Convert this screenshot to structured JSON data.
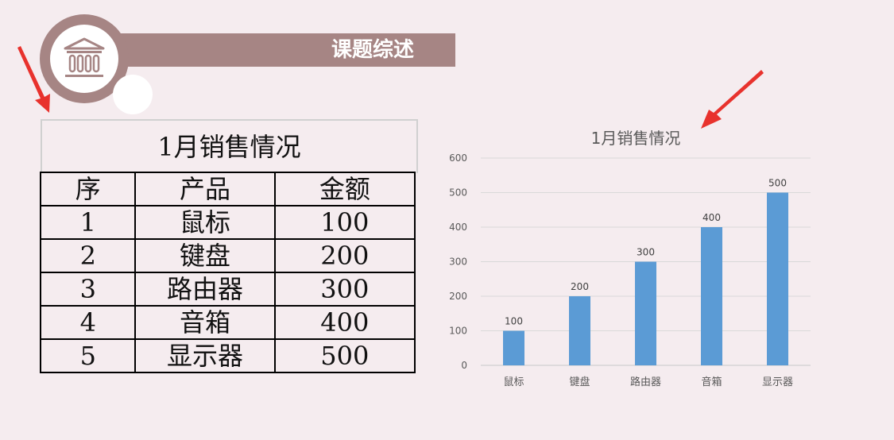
{
  "header": {
    "title": "课题综述",
    "icon": "building-columns-icon",
    "banner_color": "#a68584"
  },
  "table": {
    "title": "1月销售情况",
    "headers": [
      "序",
      "产品",
      "金额"
    ],
    "rows": [
      [
        "1",
        "鼠标",
        "100"
      ],
      [
        "2",
        "键盘",
        "200"
      ],
      [
        "3",
        "路由器",
        "300"
      ],
      [
        "4",
        "音箱",
        "400"
      ],
      [
        "5",
        "显示器",
        "500"
      ]
    ]
  },
  "annotations": {
    "arrow_color": "#e8322d"
  },
  "chart_data": {
    "type": "bar",
    "title": "1月销售情况",
    "categories": [
      "鼠标",
      "键盘",
      "路由器",
      "音箱",
      "显示器"
    ],
    "values": [
      100,
      200,
      300,
      400,
      500
    ],
    "data_labels": [
      "100",
      "200",
      "300",
      "400",
      "500"
    ],
    "yticks": [
      "0",
      "100",
      "200",
      "300",
      "400",
      "500",
      "600"
    ],
    "ylim": [
      0,
      600
    ],
    "grid": true,
    "legend": "none",
    "bar_color": "#5b9bd5"
  }
}
